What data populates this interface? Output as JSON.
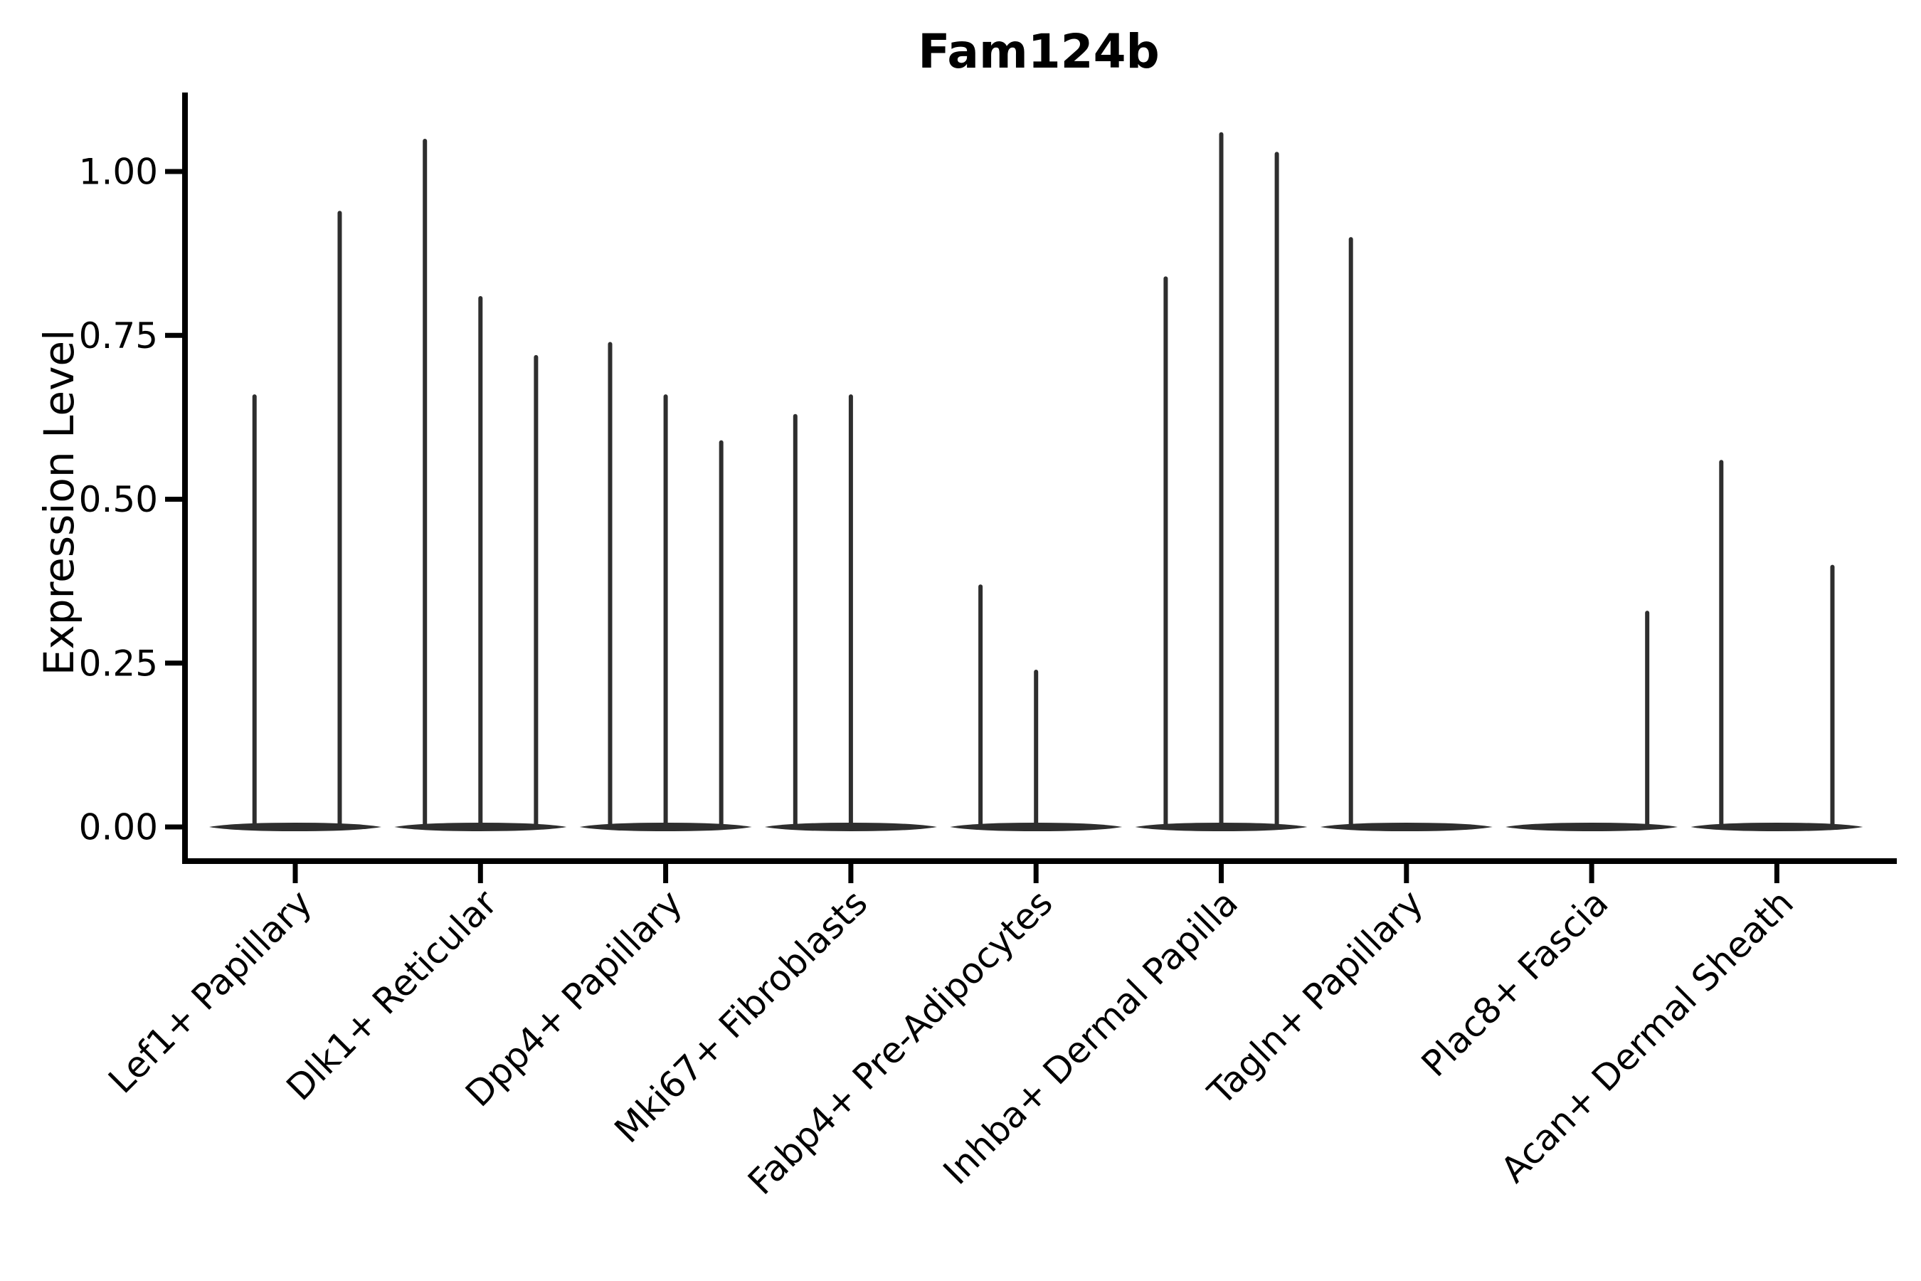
{
  "figure": {
    "title": "Fam124b"
  },
  "chart_data": {
    "type": "violin",
    "title": "Fam124b",
    "xlabel": "",
    "ylabel": "Expression Level",
    "legend": "none",
    "grid": false,
    "background": "#ffffff",
    "ink_color": "#2e2e2e",
    "axis_color": "#000000",
    "y_axis": {
      "range": [
        -0.05,
        1.12
      ],
      "ticks": [
        {
          "value": 0.0,
          "label": "0.00"
        },
        {
          "value": 0.25,
          "label": "0.25"
        },
        {
          "value": 0.5,
          "label": "0.50"
        },
        {
          "value": 0.75,
          "label": "0.75"
        },
        {
          "value": 1.0,
          "label": "1.00"
        }
      ]
    },
    "x_axis": {
      "tick_label_rotation_deg": 45
    },
    "categories": [
      "Lef1+ Papillary",
      "Dlk1+ Reticular",
      "Dpp4+ Papillary",
      "Mki67+ Fibroblasts",
      "Fabp4+ Pre-Adipocytes",
      "Inhba+ Dermal Papilla",
      "Tagln+ Papillary",
      "Plac8+ Fascia",
      "Acan+ Dermal Sheath"
    ],
    "violins_note": "Sparse single-cell expression violins: each category has a flat base at 0 (most cells zero) and thin spikes rising to the maximum expression of each sub-violin. pos = horizontal offset within the category cell (fraction of cell width).",
    "violins": [
      {
        "category": "Lef1+ Papillary",
        "spikes": [
          {
            "pos": -0.22,
            "max": 0.66
          },
          {
            "pos": 0.24,
            "max": 0.94
          }
        ]
      },
      {
        "category": "Dlk1+ Reticular",
        "spikes": [
          {
            "pos": -0.3,
            "max": 1.05
          },
          {
            "pos": 0.0,
            "max": 0.81
          },
          {
            "pos": 0.3,
            "max": 0.72
          }
        ]
      },
      {
        "category": "Dpp4+ Papillary",
        "spikes": [
          {
            "pos": -0.3,
            "max": 0.74
          },
          {
            "pos": 0.0,
            "max": 0.66
          },
          {
            "pos": 0.3,
            "max": 0.59
          }
        ]
      },
      {
        "category": "Mki67+ Fibroblasts",
        "spikes": [
          {
            "pos": -0.3,
            "max": 0.63
          },
          {
            "pos": 0.0,
            "max": 0.66
          }
        ]
      },
      {
        "category": "Fabp4+ Pre-Adipocytes",
        "spikes": [
          {
            "pos": -0.3,
            "max": 0.37
          },
          {
            "pos": 0.0,
            "max": 0.24
          }
        ]
      },
      {
        "category": "Inhba+ Dermal Papilla",
        "spikes": [
          {
            "pos": -0.3,
            "max": 0.84
          },
          {
            "pos": 0.0,
            "max": 1.06
          },
          {
            "pos": 0.3,
            "max": 1.03
          }
        ]
      },
      {
        "category": "Tagln+ Papillary",
        "spikes": [
          {
            "pos": -0.3,
            "max": 0.9
          }
        ]
      },
      {
        "category": "Plac8+ Fascia",
        "spikes": [
          {
            "pos": 0.3,
            "max": 0.33
          }
        ]
      },
      {
        "category": "Acan+ Dermal Sheath",
        "spikes": [
          {
            "pos": -0.3,
            "max": 0.56
          },
          {
            "pos": 0.3,
            "max": 0.4
          }
        ]
      }
    ]
  }
}
